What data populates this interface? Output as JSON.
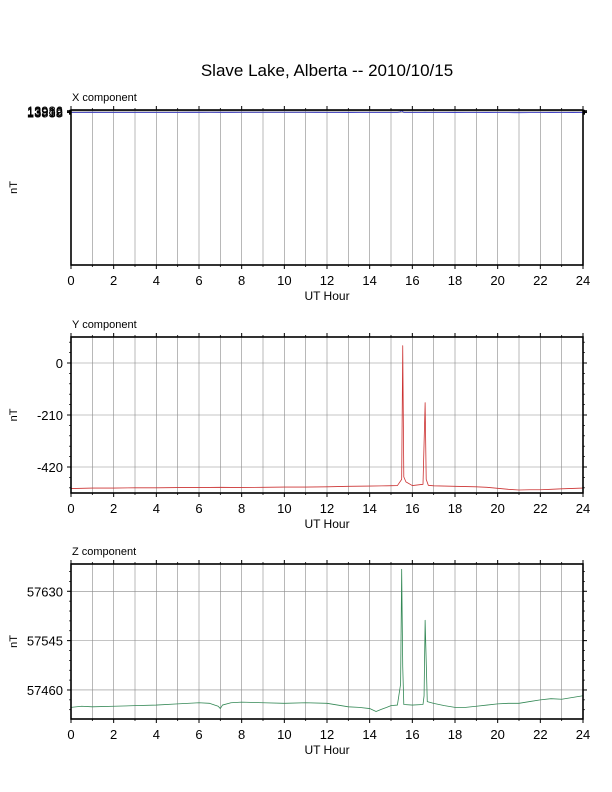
{
  "chart_data": [
    {
      "type": "line",
      "title": "Slave Lake, Alberta -- 2010/10/15",
      "subtitle": "X component",
      "xlabel": "UT Hour",
      "ylabel": "nT",
      "xlim": [
        0,
        24
      ],
      "ylim": [
        1380,
        14045
      ],
      "xticks": [
        "0",
        "2",
        "4",
        "6",
        "8",
        "10",
        "12",
        "14",
        "16",
        "18",
        "20",
        "22",
        "24"
      ],
      "yticks": [
        "13838",
        "13912",
        "13986"
      ],
      "grid": true,
      "color": "#3333cc",
      "series": [
        {
          "x": [
            0,
            0.5,
            1,
            1.5,
            2,
            2.5,
            3,
            3.5,
            4,
            4.5,
            5,
            5.5,
            6,
            6.5,
            7,
            7.5,
            8,
            8.5,
            9,
            9.5,
            10,
            10.5,
            11,
            11.5,
            12,
            12.5,
            13,
            13.5,
            14,
            14.5,
            15,
            15.3,
            15.45,
            15.5,
            15.55,
            15.6,
            15.7,
            16,
            16.5,
            16.6,
            16.7,
            17,
            17.5,
            18,
            18.5,
            19,
            19.5,
            20,
            20.5,
            20.8,
            21,
            21.5,
            22,
            22.5,
            23,
            23.5,
            24
          ],
          "y": [
            13851,
            13853,
            13855,
            13853,
            13853,
            13853,
            13853,
            13852,
            13852,
            13853,
            13854,
            13857,
            13858,
            13859,
            13857,
            13858,
            13860,
            13861,
            13862,
            13863,
            13864,
            13862,
            13860,
            13856,
            13852,
            13849,
            13846,
            13842,
            13843,
            13849,
            13852,
            13853,
            13900,
            14028,
            13920,
            13856,
            13853,
            13853,
            13852,
            13864,
            13850,
            13849,
            13848,
            13847,
            13843,
            13838,
            13834,
            13831,
            13828,
            13824,
            13826,
            13832,
            13838,
            13846,
            13848,
            13845,
            13840
          ]
        }
      ]
    },
    {
      "type": "line",
      "subtitle": "Y component",
      "xlabel": "UT Hour",
      "ylabel": "nT",
      "xlim": [
        0,
        24
      ],
      "ylim": [
        -525,
        105
      ],
      "xticks": [
        "0",
        "2",
        "4",
        "6",
        "8",
        "10",
        "12",
        "14",
        "16",
        "18",
        "20",
        "22",
        "24"
      ],
      "yticks": [
        "-420",
        "-210",
        "0"
      ],
      "grid": true,
      "color": "#cc3333",
      "series": [
        {
          "x": [
            0,
            0.5,
            1,
            2,
            3,
            4,
            5,
            6,
            7,
            8,
            9,
            10,
            11,
            12,
            13,
            14,
            14.8,
            15.3,
            15.5,
            15.55,
            15.6,
            15.7,
            16,
            16.5,
            16.6,
            16.65,
            16.75,
            17,
            17.5,
            18,
            19,
            19.5,
            20,
            20.5,
            21,
            21.5,
            22,
            22.5,
            23,
            24
          ],
          "y": [
            -507,
            -506,
            -505,
            -505,
            -504,
            -504,
            -503,
            -503,
            -502,
            -503,
            -502,
            -501,
            -501,
            -500,
            -498,
            -497,
            -496,
            -495,
            -470,
            70,
            -460,
            -480,
            -495,
            -490,
            -160,
            -470,
            -494,
            -496,
            -497,
            -498,
            -500,
            -502,
            -506,
            -510,
            -513,
            -512,
            -512,
            -510,
            -508,
            -505
          ]
        }
      ]
    },
    {
      "type": "line",
      "subtitle": "Z component",
      "xlabel": "UT Hour",
      "ylabel": "nT",
      "xlim": [
        0,
        24
      ],
      "ylim": [
        57410,
        57677
      ],
      "xticks": [
        "0",
        "2",
        "4",
        "6",
        "8",
        "10",
        "12",
        "14",
        "16",
        "18",
        "20",
        "22",
        "24"
      ],
      "yticks": [
        "57460",
        "57545",
        "57630"
      ],
      "grid": true,
      "color": "#338855",
      "series": [
        {
          "x": [
            0,
            0.5,
            1,
            2,
            3,
            4,
            5,
            6,
            6.5,
            6.9,
            7,
            7.1,
            7.5,
            8,
            9,
            10,
            11,
            12,
            12.5,
            13,
            13.5,
            14,
            14.3,
            14.5,
            14.8,
            15,
            15.3,
            15.45,
            15.5,
            15.55,
            15.6,
            16,
            16.5,
            16.55,
            16.6,
            16.7,
            17,
            17.5,
            18,
            18.5,
            19,
            19.5,
            20,
            20.5,
            21,
            21.5,
            22,
            22.5,
            23,
            23.5,
            24
          ],
          "y": [
            57430,
            57432,
            57431,
            57432,
            57433,
            57434,
            57436,
            57438,
            57437,
            57432,
            57428,
            57434,
            57438,
            57439,
            57438,
            57437,
            57438,
            57437,
            57434,
            57431,
            57430,
            57428,
            57423,
            57426,
            57430,
            57433,
            57434,
            57470,
            57668,
            57500,
            57435,
            57434,
            57435,
            57450,
            57580,
            57440,
            57437,
            57433,
            57430,
            57430,
            57432,
            57434,
            57436,
            57437,
            57437,
            57440,
            57443,
            57445,
            57444,
            57447,
            57450
          ]
        }
      ]
    }
  ]
}
